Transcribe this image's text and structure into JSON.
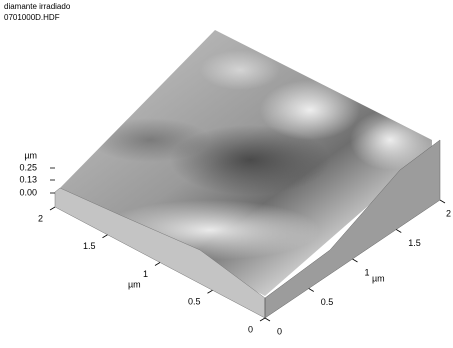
{
  "chart_data": {
    "type": "surface",
    "title": "diamante irradiado",
    "subtitle": "0701000D.HDF",
    "zlabel": "µm",
    "zlim": [
      0,
      0.25
    ],
    "zticks": [
      {
        "value": 0,
        "label": "0.00"
      },
      0.13,
      0.25
    ],
    "xlabel": "µm",
    "xlim": [
      0,
      2
    ],
    "xticks": [
      0,
      0.5,
      1,
      1.5,
      2
    ],
    "ylabel": "µm",
    "ylim": [
      0,
      2
    ],
    "yticks": [
      0,
      0.5,
      1,
      1.5,
      2
    ]
  }
}
